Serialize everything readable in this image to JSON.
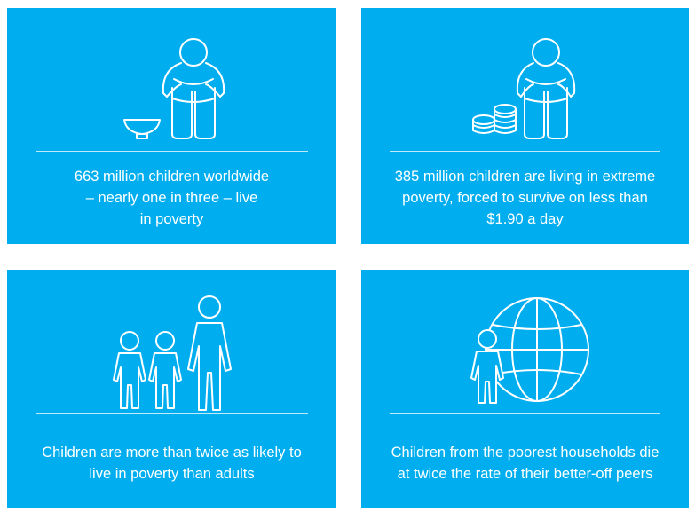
{
  "cards": [
    {
      "icon": "person-with-bowl-icon",
      "lines": [
        "663 million children worldwide",
        "– nearly one in three – live",
        "in poverty"
      ]
    },
    {
      "icon": "person-with-coins-icon",
      "lines": [
        "385 million children are living in extreme",
        "poverty, forced to survive on less than",
        "$1.90 a day"
      ]
    },
    {
      "icon": "children-and-adult-icon",
      "lines": [
        "Children are more than twice as likely to",
        "live in poverty than adults"
      ]
    },
    {
      "icon": "child-with-globe-icon",
      "lines": [
        "Children from the poorest households die",
        "at twice the rate of their better-off peers"
      ]
    }
  ],
  "colors": {
    "card_background": "#00aeef",
    "text": "#ffffff",
    "page_background": "#ffffff"
  }
}
